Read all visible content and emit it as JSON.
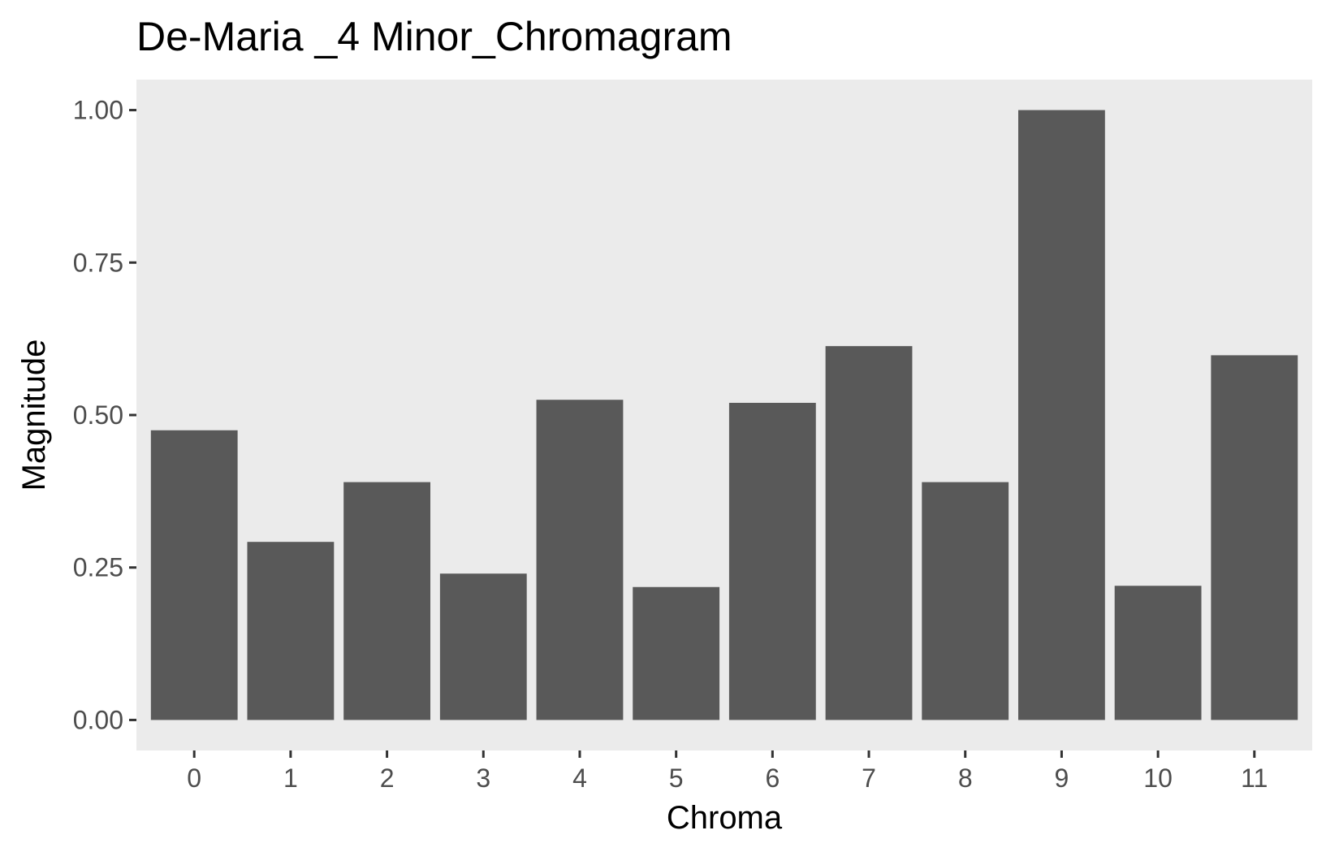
{
  "chart_data": {
    "type": "bar",
    "title": "De-Maria _4 Minor_Chromagram",
    "xlabel": "Chroma",
    "ylabel": "Magnitude",
    "categories": [
      "0",
      "1",
      "2",
      "3",
      "4",
      "5",
      "6",
      "7",
      "8",
      "9",
      "10",
      "11"
    ],
    "values": [
      0.475,
      0.292,
      0.39,
      0.24,
      0.525,
      0.218,
      0.52,
      0.613,
      0.39,
      1.0,
      0.22,
      0.598
    ],
    "ylim": [
      -0.05,
      1.05
    ],
    "yticks": [
      0,
      0.25,
      0.5,
      0.75,
      1.0
    ],
    "ytick_labels": [
      "0.00",
      "0.25",
      "0.50",
      "0.75",
      "1.00"
    ],
    "grid": false,
    "colors": {
      "bar": "#595959",
      "panel": "#ebebeb",
      "tick": "#333333",
      "tick_label": "#4d4d4d"
    }
  }
}
